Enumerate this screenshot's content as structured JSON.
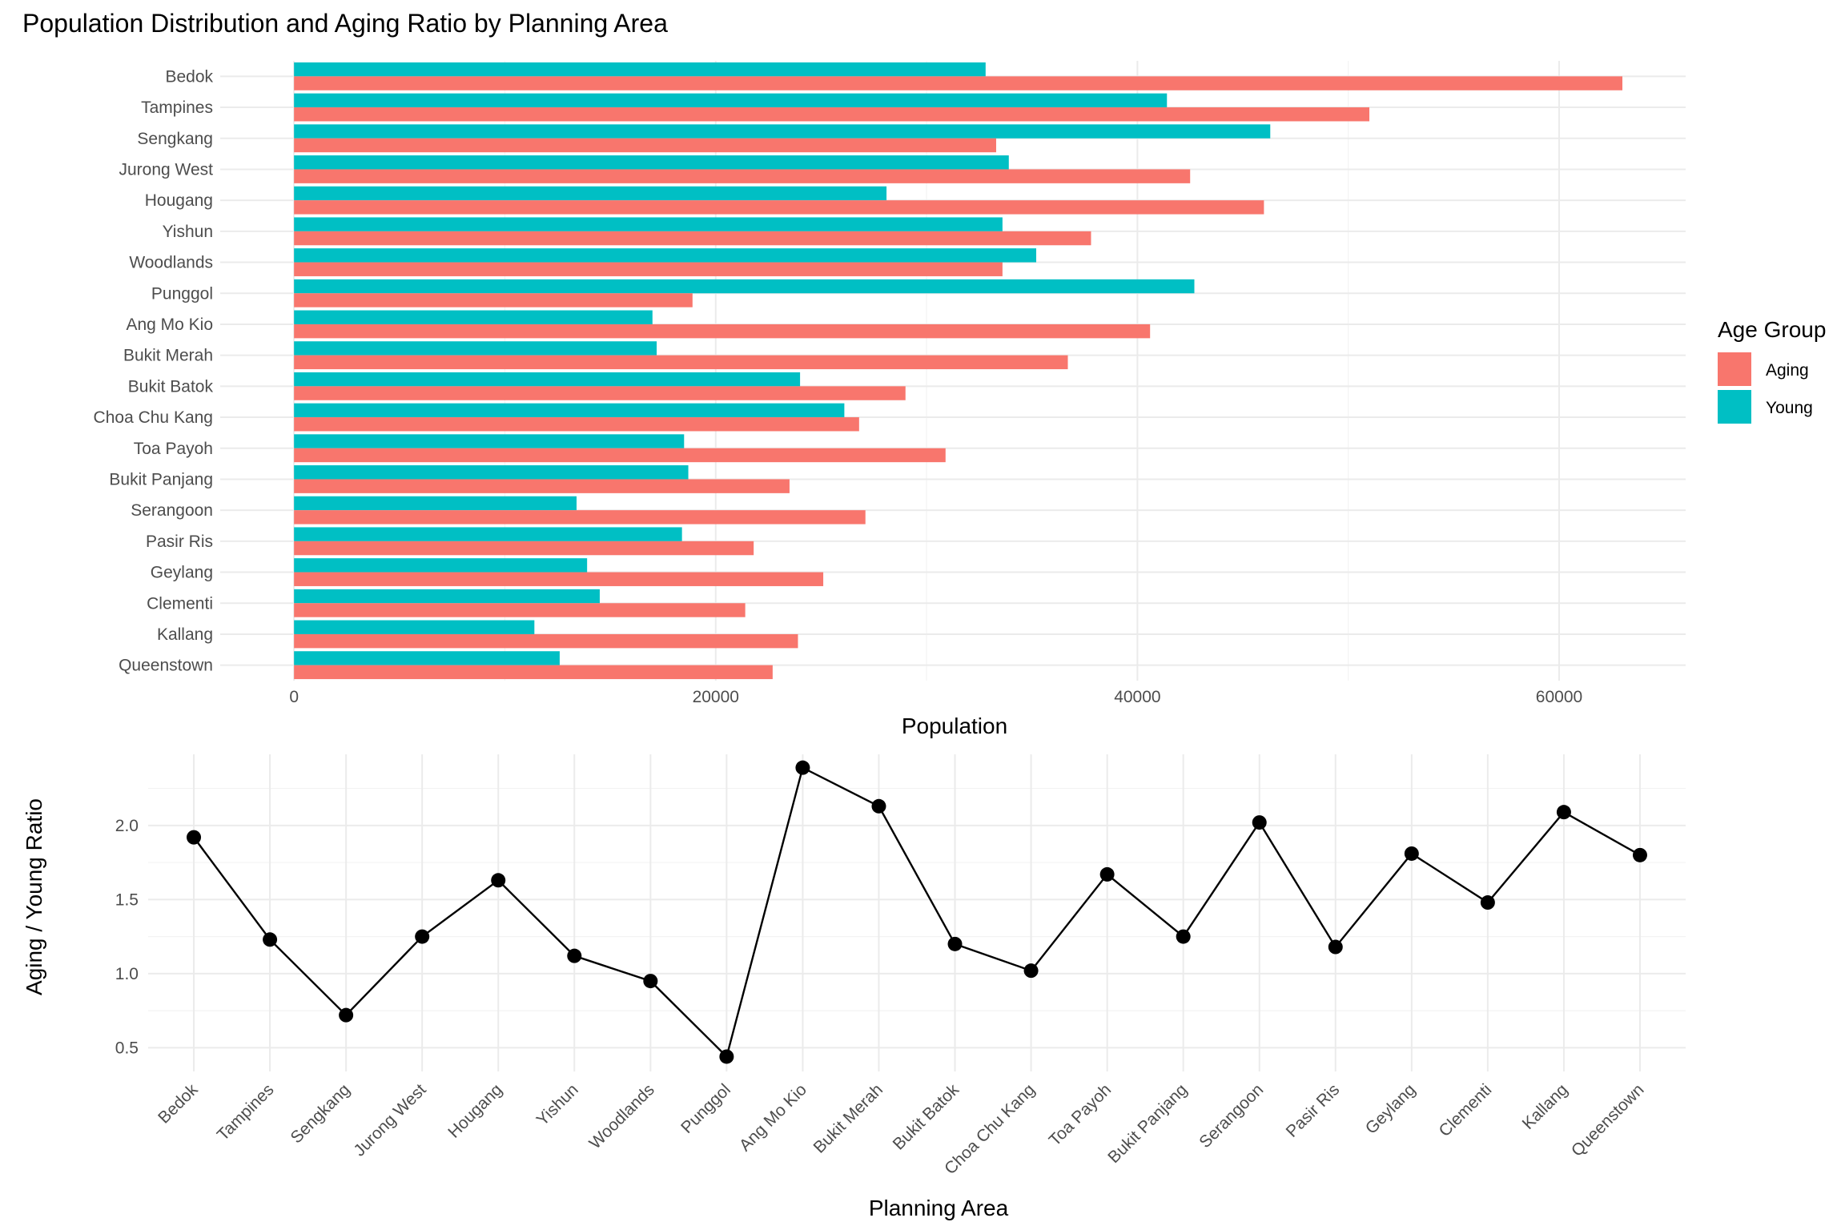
{
  "title": "Population Distribution and Aging Ratio by Planning Area",
  "colors": {
    "aging": "#F8766D",
    "young": "#00BFC4",
    "line": "#000000"
  },
  "chart_data": [
    {
      "type": "bar",
      "orientation": "horizontal",
      "categories": [
        "Bedok",
        "Tampines",
        "Sengkang",
        "Jurong West",
        "Hougang",
        "Yishun",
        "Woodlands",
        "Punggol",
        "Ang Mo Kio",
        "Bukit Merah",
        "Bukit Batok",
        "Choa Chu Kang",
        "Toa Payoh",
        "Bukit Panjang",
        "Serangoon",
        "Pasir Ris",
        "Geylang",
        "Clementi",
        "Kallang",
        "Queenstown"
      ],
      "series": [
        {
          "name": "Aging",
          "values": [
            63000,
            51000,
            33300,
            42500,
            46000,
            37800,
            33600,
            18900,
            40600,
            36700,
            29000,
            26800,
            30900,
            23500,
            27100,
            21800,
            25100,
            21400,
            23900,
            22700
          ]
        },
        {
          "name": "Young",
          "values": [
            32800,
            41400,
            46300,
            33900,
            28100,
            33600,
            35200,
            42700,
            17000,
            17200,
            24000,
            26100,
            18500,
            18700,
            13400,
            18400,
            13900,
            14500,
            11400,
            12600
          ]
        }
      ],
      "xlabel": "Population",
      "ylabel": "",
      "xlim": [
        -3500,
        66000
      ],
      "xticks": [
        0,
        20000,
        40000,
        60000
      ],
      "xtick_labels": [
        "0",
        "20000",
        "40000",
        "60000"
      ],
      "grid": true,
      "legend": {
        "title": "Age Group",
        "position": "right",
        "entries": [
          "Aging",
          "Young"
        ]
      }
    },
    {
      "type": "line",
      "x": [
        "Bedok",
        "Tampines",
        "Sengkang",
        "Jurong West",
        "Hougang",
        "Yishun",
        "Woodlands",
        "Punggol",
        "Ang Mo Kio",
        "Bukit Merah",
        "Bukit Batok",
        "Choa Chu Kang",
        "Toa Payoh",
        "Bukit Panjang",
        "Serangoon",
        "Pasir Ris",
        "Geylang",
        "Clementi",
        "Kallang",
        "Queenstown"
      ],
      "values": [
        1.92,
        1.23,
        0.72,
        1.25,
        1.63,
        1.12,
        0.95,
        0.44,
        2.39,
        2.13,
        1.2,
        1.02,
        1.67,
        1.25,
        2.02,
        1.18,
        1.81,
        1.48,
        2.09,
        1.8
      ],
      "xlabel": "Planning Area",
      "ylabel": "Aging / Young Ratio",
      "ylim": [
        0.34,
        2.48
      ],
      "yticks": [
        0.5,
        1.0,
        1.5,
        2.0
      ],
      "ytick_labels": [
        "0.5",
        "1.0",
        "1.5",
        "2.0"
      ],
      "grid": true,
      "markers": true
    }
  ]
}
